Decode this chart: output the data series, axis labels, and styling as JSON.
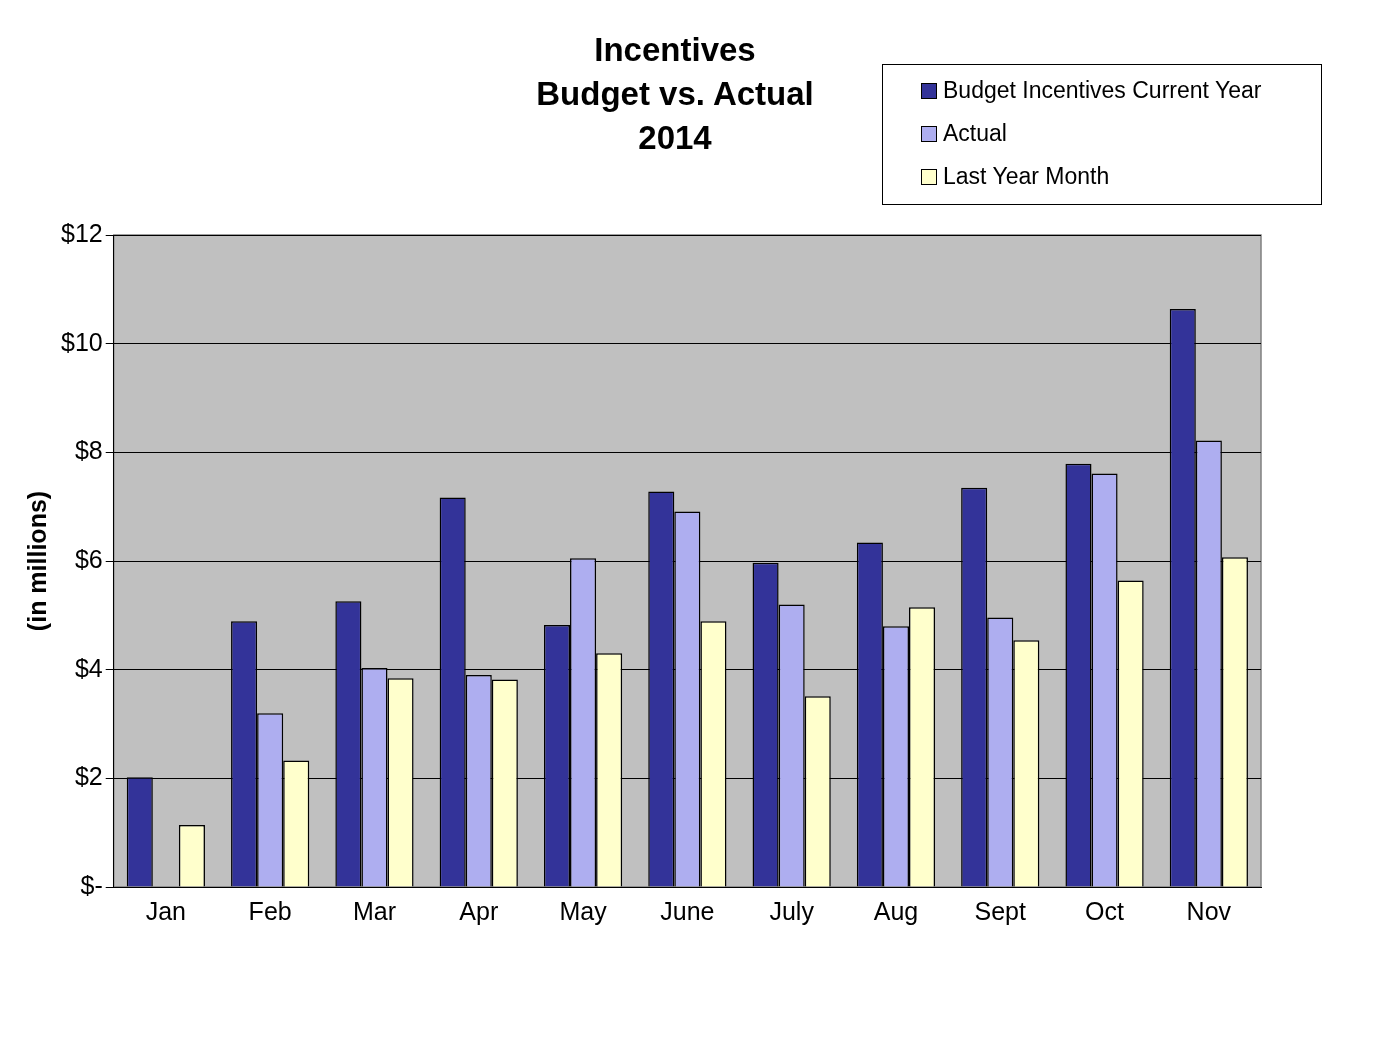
{
  "chart_data": {
    "type": "bar",
    "title": "Incentives\nBudget vs. Actual\n2014",
    "ylabel": "(in millions)",
    "categories": [
      "Jan",
      "Feb",
      "Mar",
      "Apr",
      "May",
      "June",
      "July",
      "Aug",
      "Sept",
      "Oct",
      "Nov"
    ],
    "series": [
      {
        "name": "Budget Incentives Current Year",
        "color": "#333399",
        "values": [
          2.02,
          4.89,
          5.26,
          7.17,
          4.82,
          7.28,
          5.97,
          6.34,
          7.35,
          7.79,
          10.64
        ]
      },
      {
        "name": "Actual",
        "color": "#aeaef0",
        "values": [
          null,
          3.2,
          4.03,
          3.9,
          6.05,
          6.91,
          5.2,
          4.8,
          4.96,
          7.61,
          8.22
        ]
      },
      {
        "name": "Last Year Month",
        "color": "#ffffcc",
        "values": [
          1.14,
          2.33,
          3.84,
          3.82,
          4.3,
          4.89,
          3.51,
          5.15,
          4.54,
          5.64,
          6.07
        ]
      }
    ],
    "ylim": [
      0,
      12
    ],
    "yticks": [
      {
        "value": 0,
        "label": "$-"
      },
      {
        "value": 2,
        "label": "$2"
      },
      {
        "value": 4,
        "label": "$4"
      },
      {
        "value": 6,
        "label": "$6"
      },
      {
        "value": 8,
        "label": "$8"
      },
      {
        "value": 10,
        "label": "$10"
      },
      {
        "value": 12,
        "label": "$12"
      }
    ],
    "grid": "y",
    "legend": "top right"
  }
}
